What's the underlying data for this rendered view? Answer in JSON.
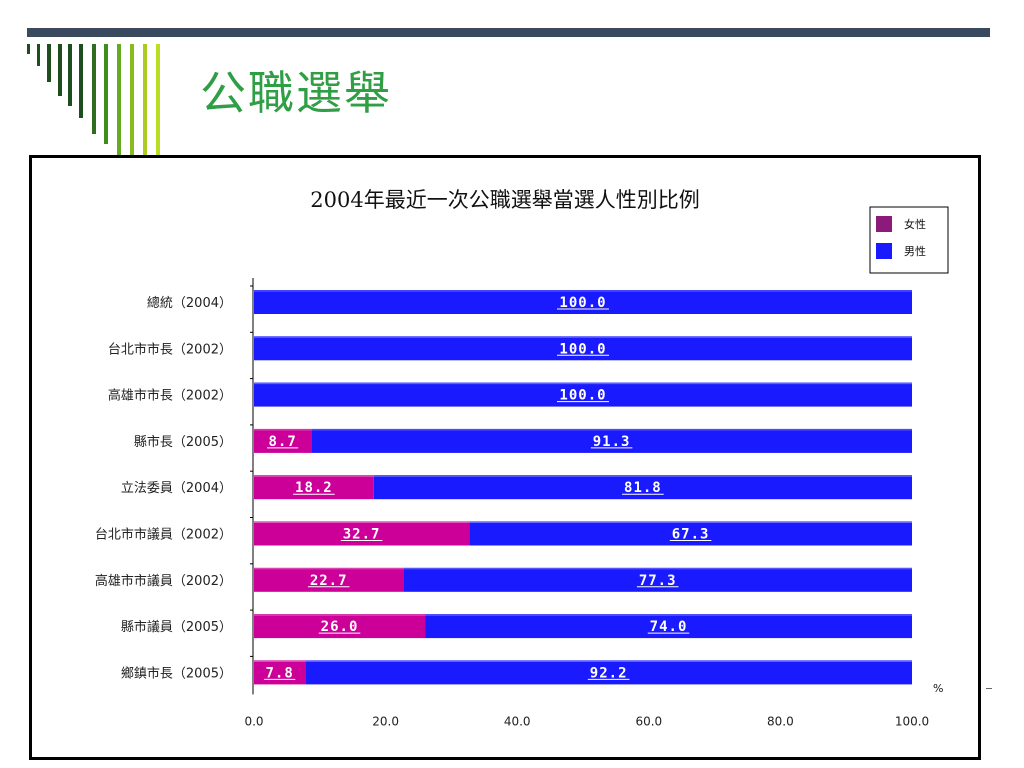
{
  "slide": {
    "title": "公職選舉"
  },
  "chart_data": {
    "type": "bar",
    "orientation": "horizontal",
    "stacked": true,
    "title": "2004年最近一次公職選舉當選人性別比例",
    "xlabel": "",
    "ylabel": "",
    "unit": "%",
    "xlim": [
      0,
      100
    ],
    "xticks": [
      "0.0",
      "20.0",
      "40.0",
      "60.0",
      "80.0",
      "100.0"
    ],
    "categories": [
      "總統（2004）",
      "台北市市長（2002）",
      "高雄市市長（2002）",
      "縣市長（2005）",
      "立法委員（2004）",
      "台北市市議員（2002）",
      "高雄市市議員（2002）",
      "縣市議員（2005）",
      "鄉鎮市長（2005）"
    ],
    "series": [
      {
        "name": "女性",
        "color": "#cc0099",
        "values": [
          0,
          0,
          0,
          8.7,
          18.2,
          32.7,
          22.7,
          26.0,
          7.8
        ],
        "labels": [
          "",
          "",
          "",
          "8.7",
          "18.2",
          "32.7",
          "22.7",
          "26.0",
          "7.8"
        ]
      },
      {
        "name": "男性",
        "color": "#1a1aff",
        "values": [
          100.0,
          100.0,
          100.0,
          91.3,
          81.8,
          67.3,
          77.3,
          74.0,
          92.2
        ],
        "labels": [
          "100.0",
          "100.0",
          "100.0",
          "91.3",
          "81.8",
          "67.3",
          "77.3",
          "74.0",
          "92.2"
        ]
      }
    ],
    "legend": {
      "placement": "top-right",
      "items": [
        {
          "name": "女性",
          "color": "#8b1a7a"
        },
        {
          "name": "男性",
          "color": "#1a1aff"
        }
      ]
    },
    "grid": false
  }
}
